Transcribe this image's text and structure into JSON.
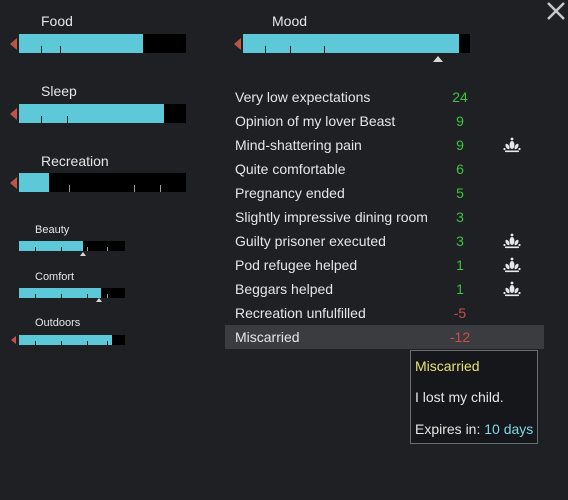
{
  "needs": {
    "food": {
      "label": "Food",
      "level": 0.74
    },
    "sleep": {
      "label": "Sleep",
      "level": 0.87
    },
    "recreation": {
      "label": "Recreation",
      "level": 0.18
    },
    "beauty": {
      "label": "Beauty",
      "level": 0.6
    },
    "comfort": {
      "label": "Comfort",
      "level": 0.77
    },
    "outdoors": {
      "label": "Outdoors",
      "level": 0.88
    }
  },
  "mood": {
    "label": "Mood",
    "level": 0.95
  },
  "thoughts": [
    {
      "label": "Very low expectations",
      "value": "24",
      "sign": "pos",
      "icon": false
    },
    {
      "label": "Opinion of my lover Beast",
      "value": "9",
      "sign": "pos",
      "icon": false
    },
    {
      "label": "Mind-shattering pain",
      "value": "9",
      "sign": "pos",
      "icon": true
    },
    {
      "label": "Quite comfortable",
      "value": "6",
      "sign": "pos",
      "icon": false
    },
    {
      "label": "Pregnancy ended",
      "value": "5",
      "sign": "pos",
      "icon": false
    },
    {
      "label": "Slightly impressive dining room",
      "value": "3",
      "sign": "pos",
      "icon": false
    },
    {
      "label": "Guilty prisoner executed",
      "value": "3",
      "sign": "pos",
      "icon": true
    },
    {
      "label": "Pod refugee helped",
      "value": "1",
      "sign": "pos",
      "icon": true
    },
    {
      "label": "Beggars helped",
      "value": "1",
      "sign": "pos",
      "icon": true
    },
    {
      "label": "Recreation unfulfilled",
      "value": "-5",
      "sign": "neg",
      "icon": false
    },
    {
      "label": "Miscarried",
      "value": "-12",
      "sign": "neg",
      "icon": false
    }
  ],
  "tooltip": {
    "title": "Miscarried",
    "description": "I lost my child.",
    "expires_label": "Expires in:",
    "expires_value": "10 days"
  },
  "icons": {
    "close": "close-icon",
    "precept": "ideology-precept-icon"
  },
  "colors": {
    "bar_fill": "#5cc8d8",
    "positive": "#3ec43e",
    "negative": "#cc4d4a",
    "tooltip_title": "#e8e07a",
    "expires_value": "#7fd8e6"
  }
}
